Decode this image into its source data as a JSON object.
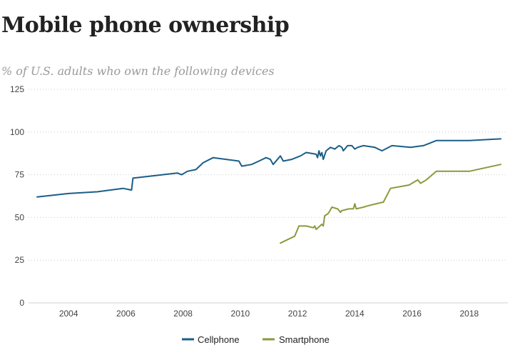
{
  "title": "Mobile phone ownership",
  "subtitle": "% of U.S. adults who own the following devices",
  "chart_data": {
    "type": "line",
    "title": "Mobile phone ownership",
    "subtitle": "% of U.S. adults who own the following devices",
    "xlabel": "",
    "ylabel": "",
    "xlim": [
      2002.6,
      2019.35
    ],
    "ylim": [
      0,
      125
    ],
    "grid": true,
    "legend_position": "bottom",
    "x_ticks": [
      {
        "value": 2004,
        "label": "2004"
      },
      {
        "value": 2006,
        "label": "2006"
      },
      {
        "value": 2008,
        "label": "2008"
      },
      {
        "value": 2010,
        "label": "2010"
      },
      {
        "value": 2012,
        "label": "2012"
      },
      {
        "value": 2014,
        "label": "2014"
      },
      {
        "value": 2016,
        "label": "2016"
      },
      {
        "value": 2018,
        "label": "2018"
      }
    ],
    "y_ticks": [
      {
        "value": 0,
        "label": "0"
      },
      {
        "value": 25,
        "label": "25"
      },
      {
        "value": 50,
        "label": "50"
      },
      {
        "value": 75,
        "label": "75"
      },
      {
        "value": 100,
        "label": "100"
      },
      {
        "value": 125,
        "label": "125"
      }
    ],
    "series": [
      {
        "name": "Cellphone",
        "color": "#1b5e87",
        "x": [
          2002.9,
          2004.0,
          2005.0,
          2005.9,
          2006.2,
          2006.25,
          2007.8,
          2007.95,
          2008.15,
          2008.45,
          2008.7,
          2009.05,
          2009.5,
          2009.95,
          2010.05,
          2010.4,
          2010.65,
          2010.9,
          2011.05,
          2011.15,
          2011.4,
          2011.5,
          2011.8,
          2012.1,
          2012.3,
          2012.65,
          2012.7,
          2012.75,
          2012.8,
          2012.85,
          2012.9,
          2013.0,
          2013.15,
          2013.3,
          2013.45,
          2013.55,
          2013.6,
          2013.75,
          2013.9,
          2014.0,
          2014.1,
          2014.3,
          2014.7,
          2014.95,
          2015.3,
          2015.95,
          2016.4,
          2016.85,
          2018.0,
          2019.1
        ],
        "y": [
          62,
          64,
          65,
          67,
          66,
          73,
          76,
          75,
          77,
          78,
          82,
          85,
          84,
          83,
          80,
          81,
          83,
          85,
          84,
          81,
          86,
          83,
          84,
          86,
          88,
          87,
          85,
          89,
          86,
          88,
          84,
          89,
          91,
          90,
          92,
          91,
          89,
          92,
          92,
          90,
          91,
          92,
          91,
          89,
          92,
          91,
          92,
          95,
          95,
          96
        ]
      },
      {
        "name": "Smartphone",
        "color": "#8a9a3c",
        "x": [
          2011.4,
          2011.9,
          2012.05,
          2012.3,
          2012.55,
          2012.6,
          2012.65,
          2012.85,
          2012.9,
          2012.95,
          2013.05,
          2013.1,
          2013.2,
          2013.4,
          2013.5,
          2013.55,
          2013.8,
          2013.95,
          2014.0,
          2014.05,
          2014.3,
          2014.5,
          2015.0,
          2015.25,
          2015.9,
          2016.2,
          2016.3,
          2016.5,
          2016.85,
          2018.0,
          2019.1
        ],
        "y": [
          35,
          39,
          45,
          45,
          44,
          45,
          43,
          46,
          45,
          51,
          52,
          53,
          56,
          55,
          53,
          54,
          55,
          55,
          58,
          55,
          56,
          57,
          59,
          67,
          69,
          72,
          70,
          72,
          77,
          77,
          81
        ]
      }
    ]
  }
}
